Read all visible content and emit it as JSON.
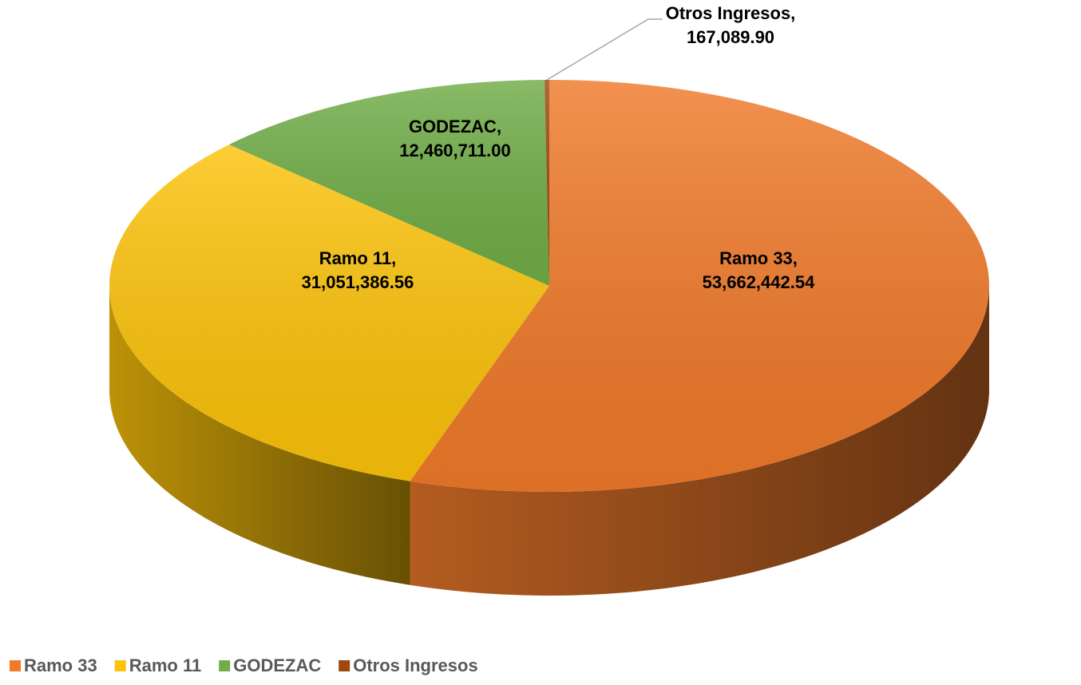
{
  "chart_data": {
    "type": "pie",
    "categories": [
      "Ramo 33",
      "Ramo 11",
      "GODEZAC",
      "Otros Ingresos"
    ],
    "values": [
      53662442.54,
      31051386.56,
      12460711.0,
      167089.9
    ],
    "value_labels": [
      "53,662,442.54",
      "31,051,386.56",
      "12,460,711.00",
      "167,089.90"
    ],
    "label_names": [
      "Ramo 33,",
      "Ramo 11,",
      "GODEZAC,",
      "Otros Ingresos,"
    ],
    "colors": [
      "#f07a2a",
      "#fcc30a",
      "#70ad47",
      "#9e480e"
    ],
    "legend": "bottom-left"
  }
}
